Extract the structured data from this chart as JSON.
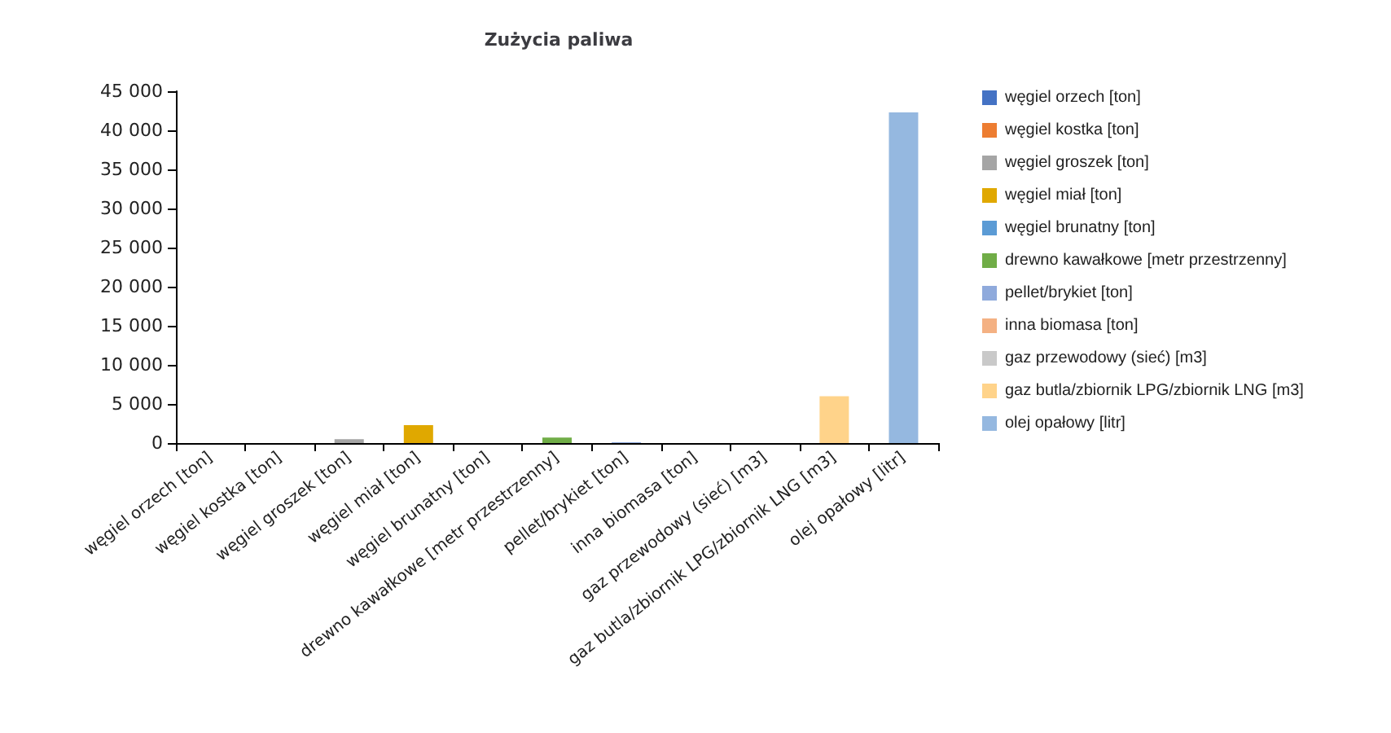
{
  "chart_data": {
    "type": "bar",
    "title": "Zużycia paliwa",
    "categories": [
      "węgiel orzech [ton]",
      "węgiel kostka [ton]",
      "węgiel groszek [ton]",
      "węgiel miał [ton]",
      "węgiel brunatny [ton]",
      "drewno kawałkowe [metr przestrzenny]",
      "pellet/brykiet [ton]",
      "inna biomasa [ton]",
      "gaz przewodowy (sieć) [m3]",
      "gaz butla/zbiornik LPG/zbiornik LNG [m3]",
      "olej opałowy [litr]"
    ],
    "series": [
      {
        "name": "węgiel orzech [ton]",
        "color": "#4472c4",
        "values": [
          0,
          null,
          null,
          null,
          null,
          null,
          null,
          null,
          null,
          null,
          null
        ]
      },
      {
        "name": "węgiel kostka [ton]",
        "color": "#ed7d31",
        "values": [
          null,
          0,
          null,
          null,
          null,
          null,
          null,
          null,
          null,
          null,
          null
        ]
      },
      {
        "name": "węgiel groszek [ton]",
        "color": "#a5a5a5",
        "values": [
          null,
          null,
          500,
          null,
          null,
          null,
          null,
          null,
          null,
          null,
          null
        ]
      },
      {
        "name": "węgiel miał [ton]",
        "color": "#e0a800",
        "values": [
          null,
          null,
          null,
          2300,
          null,
          null,
          null,
          null,
          null,
          null,
          null
        ]
      },
      {
        "name": "węgiel brunatny [ton]",
        "color": "#5b9bd5",
        "values": [
          null,
          null,
          null,
          null,
          0,
          null,
          null,
          null,
          null,
          null,
          null
        ]
      },
      {
        "name": "drewno kawałkowe [metr przestrzenny]",
        "color": "#70ad47",
        "values": [
          null,
          null,
          null,
          null,
          null,
          700,
          null,
          null,
          null,
          null,
          null
        ]
      },
      {
        "name": "pellet/brykiet [ton]",
        "color": "#8faadc",
        "values": [
          null,
          null,
          null,
          null,
          null,
          null,
          100,
          null,
          null,
          null,
          null
        ]
      },
      {
        "name": "inna biomasa [ton]",
        "color": "#f4b183",
        "values": [
          null,
          null,
          null,
          null,
          null,
          null,
          null,
          0,
          null,
          null,
          null
        ]
      },
      {
        "name": "gaz przewodowy (sieć) [m3]",
        "color": "#c9c9c9",
        "values": [
          null,
          null,
          null,
          null,
          null,
          null,
          null,
          null,
          0,
          null,
          null
        ]
      },
      {
        "name": "gaz butla/zbiornik LPG/zbiornik LNG [m3]",
        "color": "#ffd38a",
        "values": [
          null,
          null,
          null,
          null,
          null,
          null,
          null,
          null,
          null,
          6000,
          null
        ]
      },
      {
        "name": "olej opałowy [litr]",
        "color": "#95b8e0",
        "values": [
          null,
          null,
          null,
          null,
          null,
          null,
          null,
          null,
          null,
          null,
          42300
        ]
      }
    ],
    "ylim": [
      0,
      45000
    ],
    "yticks": [
      {
        "value": 0,
        "label": "0"
      },
      {
        "value": 5000,
        "label": "5 000"
      },
      {
        "value": 10000,
        "label": "10 000"
      },
      {
        "value": 15000,
        "label": "15 000"
      },
      {
        "value": 20000,
        "label": "20 000"
      },
      {
        "value": 25000,
        "label": "25 000"
      },
      {
        "value": 30000,
        "label": "30 000"
      },
      {
        "value": 35000,
        "label": "35 000"
      },
      {
        "value": 40000,
        "label": "40 000"
      },
      {
        "value": 45000,
        "label": "45 000"
      }
    ],
    "grid": false,
    "legend": "right"
  }
}
